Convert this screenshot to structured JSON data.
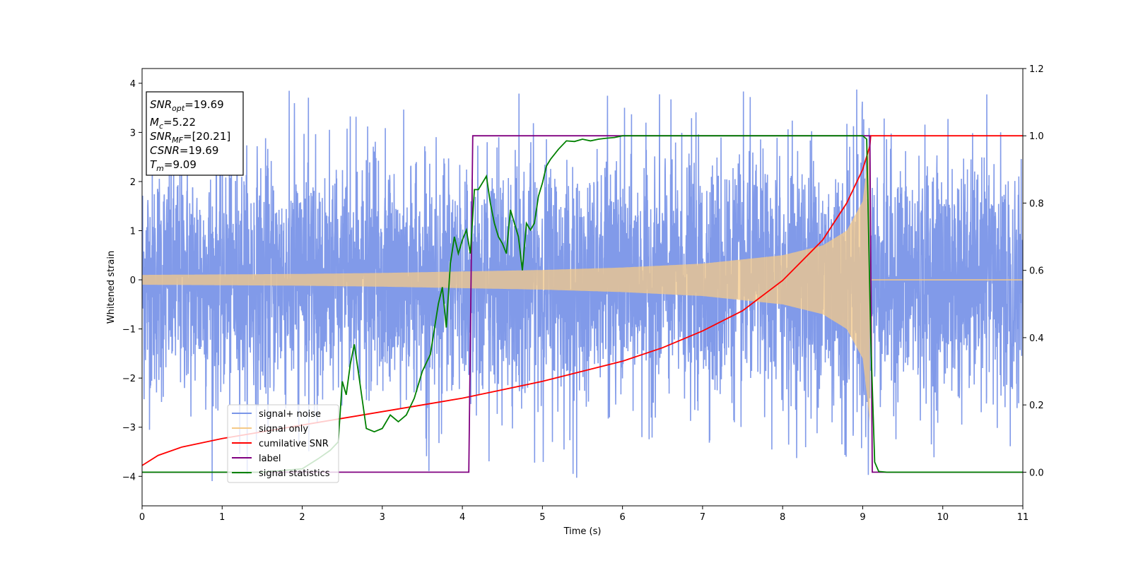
{
  "chart_data": {
    "type": "line",
    "title": "",
    "xlabel": "Time (s)",
    "ylabel": "Whitened strain",
    "y2label": "",
    "xlim": [
      0,
      11
    ],
    "ylim": [
      -4.6,
      4.3
    ],
    "y2lim": [
      -0.1,
      1.2
    ],
    "x_ticks": [
      "0",
      "1",
      "2",
      "3",
      "4",
      "5",
      "6",
      "7",
      "8",
      "9",
      "10",
      "11"
    ],
    "y_ticks": [
      "−4",
      "−3",
      "−2",
      "−1",
      "0",
      "1",
      "2",
      "3",
      "4"
    ],
    "y2_ticks": [
      "0.0",
      "0.2",
      "0.4",
      "0.6",
      "0.8",
      "1.0",
      "1.2"
    ],
    "grid": false,
    "legend_position": "lower-left",
    "legend": [
      {
        "label": "signal+ noise",
        "color": "#7a95e8"
      },
      {
        "label": "signal only",
        "color": "#f5c987"
      },
      {
        "label": "cumilative SNR",
        "color": "#ff0000"
      },
      {
        "label": "label",
        "color": "#800080"
      },
      {
        "label": "signal statistics",
        "color": "#008000"
      }
    ],
    "stats_box": [
      {
        "name": "SNR",
        "sub": "opt",
        "value": "=19.69"
      },
      {
        "name": "M",
        "sub": "c",
        "value": "=5.22"
      },
      {
        "name": "SNR",
        "sub": "MF",
        "value": "=[20.21]"
      },
      {
        "name": "CSNR",
        "sub": "",
        "value": "=19.69"
      },
      {
        "name": "T",
        "sub": "m",
        "value": "=9.09"
      }
    ],
    "series": [
      {
        "name": "signal+ noise",
        "axis": "left",
        "color": "#7a95e8",
        "description_range": [
          -4.2,
          3.9
        ],
        "x_range": [
          0,
          11
        ]
      },
      {
        "name": "signal only",
        "axis": "left",
        "color": "#f5c987",
        "envelope_x": [
          0,
          1,
          2,
          3,
          4,
          5,
          6,
          7,
          8,
          8.5,
          8.8,
          9.0,
          9.09,
          9.1,
          11
        ],
        "envelope_y": [
          0.1,
          0.11,
          0.12,
          0.14,
          0.17,
          0.2,
          0.25,
          0.33,
          0.5,
          0.7,
          1.0,
          1.6,
          2.9,
          0,
          0
        ]
      },
      {
        "name": "cumilative SNR",
        "axis": "right",
        "x": [
          0,
          0.2,
          0.5,
          1,
          1.5,
          2,
          2.5,
          3,
          3.5,
          4,
          4.5,
          5,
          5.5,
          6,
          6.5,
          7,
          7.5,
          8,
          8.5,
          8.8,
          9.0,
          9.09,
          9.1,
          11
        ],
        "y": [
          0.02,
          0.05,
          0.075,
          0.1,
          0.12,
          0.14,
          0.16,
          0.18,
          0.2,
          0.22,
          0.245,
          0.27,
          0.3,
          0.33,
          0.37,
          0.42,
          0.48,
          0.57,
          0.69,
          0.8,
          0.9,
          0.97,
          1.0,
          1.0
        ]
      },
      {
        "name": "label",
        "axis": "right",
        "x": [
          0,
          4.08,
          4.13,
          9.09,
          9.12,
          11
        ],
        "y": [
          0,
          0,
          1,
          1,
          0,
          0
        ]
      },
      {
        "name": "signal statistics",
        "axis": "right",
        "x": [
          0,
          0.5,
          1,
          1.5,
          2,
          2.2,
          2.35,
          2.45,
          2.5,
          2.55,
          2.6,
          2.65,
          2.7,
          2.8,
          2.9,
          3.0,
          3.1,
          3.2,
          3.3,
          3.4,
          3.5,
          3.6,
          3.7,
          3.75,
          3.8,
          3.85,
          3.9,
          3.95,
          4.0,
          4.05,
          4.1,
          4.15,
          4.2,
          4.3,
          4.35,
          4.4,
          4.45,
          4.5,
          4.55,
          4.6,
          4.7,
          4.75,
          4.8,
          4.85,
          4.9,
          4.95,
          5.0,
          5.05,
          5.1,
          5.2,
          5.3,
          5.4,
          5.5,
          5.6,
          5.7,
          5.8,
          5.9,
          6.0,
          6.5,
          7.0,
          8.0,
          8.9,
          9.0,
          9.05,
          9.1,
          9.15,
          9.2,
          9.3,
          10,
          11
        ],
        "y": [
          0,
          0.0,
          0.0,
          0.0,
          0.01,
          0.04,
          0.065,
          0.09,
          0.27,
          0.23,
          0.32,
          0.38,
          0.3,
          0.13,
          0.12,
          0.13,
          0.17,
          0.15,
          0.17,
          0.22,
          0.3,
          0.35,
          0.5,
          0.55,
          0.43,
          0.62,
          0.7,
          0.65,
          0.69,
          0.72,
          0.65,
          0.84,
          0.84,
          0.88,
          0.8,
          0.74,
          0.7,
          0.68,
          0.65,
          0.78,
          0.7,
          0.6,
          0.74,
          0.72,
          0.74,
          0.82,
          0.86,
          0.91,
          0.93,
          0.96,
          0.985,
          0.983,
          0.99,
          0.985,
          0.99,
          0.993,
          0.995,
          1.0,
          1.0,
          1.0,
          1.0,
          1.0,
          1.0,
          0.99,
          0.4,
          0.03,
          0.002,
          0.0,
          0.0,
          0.0
        ]
      }
    ]
  }
}
